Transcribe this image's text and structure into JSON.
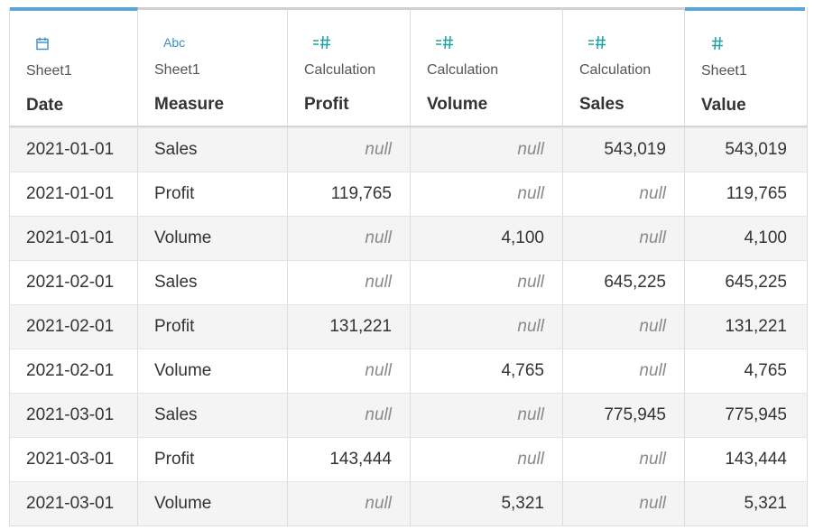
{
  "columns": [
    {
      "source": "Sheet1",
      "name": "Date",
      "type_icon": "calendar-icon",
      "accent": true
    },
    {
      "source": "Sheet1",
      "name": "Measure",
      "type_icon": "abc-string-icon",
      "type_text": "Abc",
      "accent": false
    },
    {
      "source": "Calculation",
      "name": "Profit",
      "type_icon": "calculated-number-icon",
      "accent": false
    },
    {
      "source": "Calculation",
      "name": "Volume",
      "type_icon": "calculated-number-icon",
      "accent": false
    },
    {
      "source": "Calculation",
      "name": "Sales",
      "type_icon": "calculated-number-icon",
      "accent": false
    },
    {
      "source": "Sheet1",
      "name": "Value",
      "type_icon": "number-icon",
      "accent": true
    }
  ],
  "rows": [
    [
      "2021-01-01",
      "Sales",
      "null",
      "null",
      "543,019",
      "543,019"
    ],
    [
      "2021-01-01",
      "Profit",
      "119,765",
      "null",
      "null",
      "119,765"
    ],
    [
      "2021-01-01",
      "Volume",
      "null",
      "4,100",
      "null",
      "4,100"
    ],
    [
      "2021-02-01",
      "Sales",
      "null",
      "null",
      "645,225",
      "645,225"
    ],
    [
      "2021-02-01",
      "Profit",
      "131,221",
      "null",
      "null",
      "131,221"
    ],
    [
      "2021-02-01",
      "Volume",
      "null",
      "4,765",
      "null",
      "4,765"
    ],
    [
      "2021-03-01",
      "Sales",
      "null",
      "null",
      "775,945",
      "775,945"
    ],
    [
      "2021-03-01",
      "Profit",
      "143,444",
      "null",
      "null",
      "143,444"
    ],
    [
      "2021-03-01",
      "Volume",
      "null",
      "5,321",
      "null",
      "5,321"
    ]
  ],
  "colors": {
    "accent": "#5ba6d3",
    "icon_teal": "#1da2a0",
    "icon_blue": "#3a8fc8",
    "null_text": "#8a8a8a",
    "zebra": "#f4f4f4"
  }
}
